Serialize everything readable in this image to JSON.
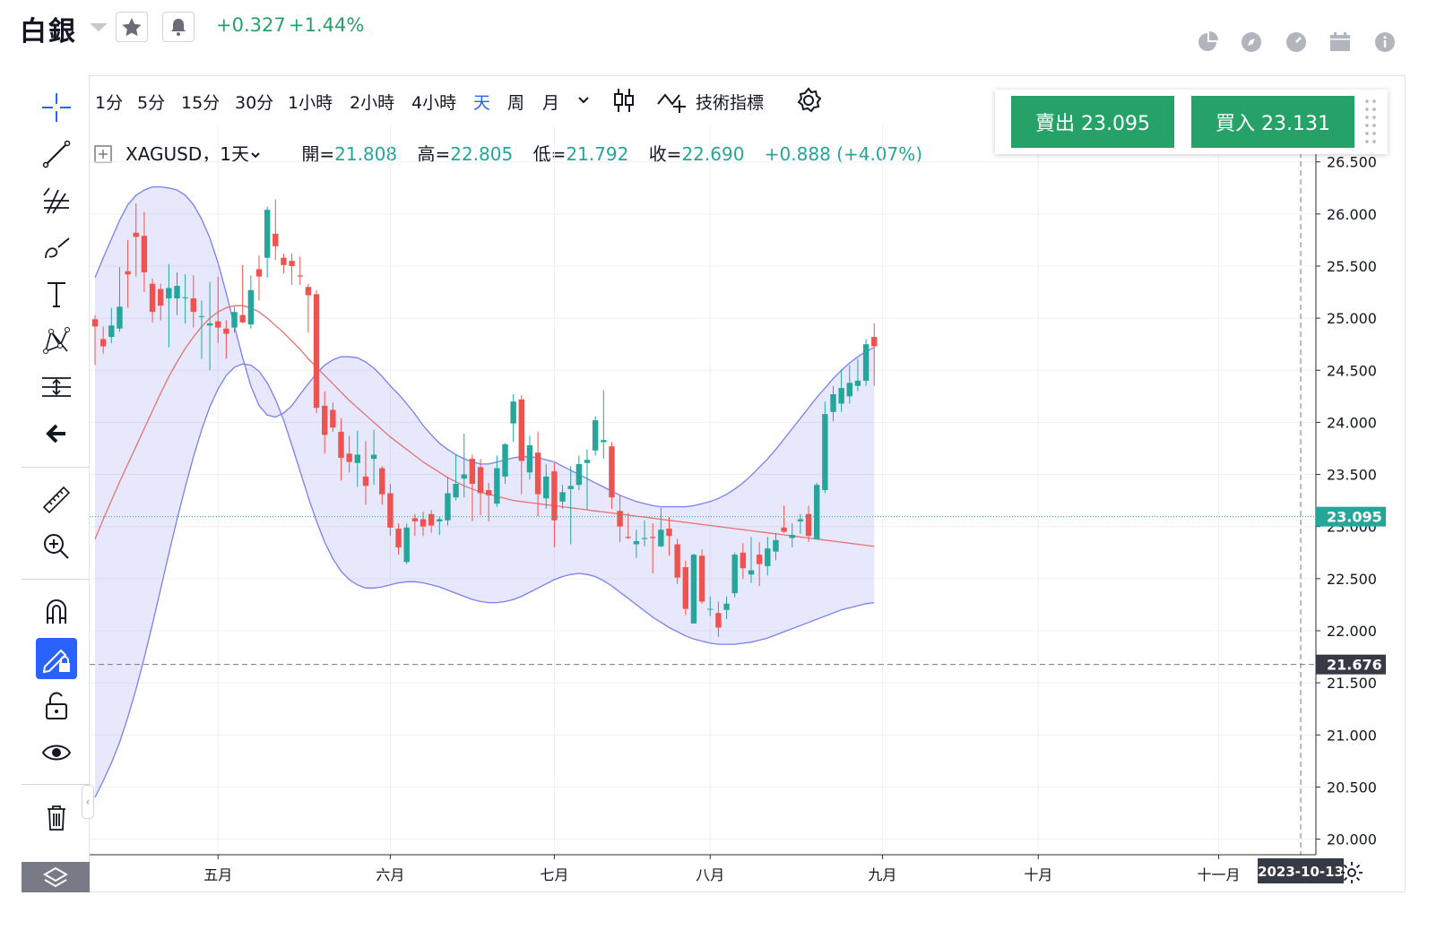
{
  "header": {
    "symbol_title": "白銀",
    "change_abs": "+0.327",
    "change_pct": "+1.44%"
  },
  "timeframes": [
    "1分",
    "5分",
    "15分",
    "30分",
    "1小時",
    "2小時",
    "4小時",
    "天",
    "周",
    "月"
  ],
  "active_timeframe": "天",
  "toolbar": {
    "indicators_label": "技術指標"
  },
  "legend": {
    "symbol": "XAGUSD，1天",
    "open_label": "開=",
    "open": "21.808",
    "high_label": "高=",
    "high": "22.805",
    "low_label": "低=",
    "low": "21.792",
    "close_label": "收=",
    "close": "22.690",
    "change": "+0.888 (+4.07%)"
  },
  "trade": {
    "sell_label": "賣出 23.095",
    "buy_label": "買入 23.131"
  },
  "colors": {
    "up": "#26a69a",
    "down": "#ef5350",
    "band": "#7b7ff0",
    "ma": "#e57373",
    "accent": "#2962ff"
  },
  "icons": [
    "crosshair-icon",
    "trendline-icon",
    "pitchfork-icon",
    "brush-icon",
    "text-icon",
    "pattern-icon",
    "measure-icon",
    "back-arrow-icon",
    "ruler-icon",
    "zoom-in-icon",
    "magnet-icon",
    "lock-pencil-icon",
    "unlock-icon",
    "eye-icon",
    "trash-icon",
    "layers-icon",
    "settings-icon",
    "pie-icon",
    "compass-icon",
    "gauge-icon",
    "calendar-icon",
    "info-icon"
  ],
  "chart_data": {
    "type": "candlestick",
    "symbol": "XAGUSD",
    "y_axis_ticks": [
      "26.500",
      "26.000",
      "25.500",
      "25.000",
      "24.500",
      "24.000",
      "23.500",
      "23.000",
      "22.500",
      "22.000",
      "21.500",
      "21.000",
      "20.500",
      "20.000"
    ],
    "ylim": [
      19.85,
      26.85
    ],
    "x_axis_labels": [
      "五月",
      "六月",
      "七月",
      "八月",
      "九月",
      "十月",
      "十一月"
    ],
    "last_price_label": "23.095",
    "last_price": 23.095,
    "crosshair_price_label": "21.676",
    "crosshair_price": 21.676,
    "crosshair_date_label": "2023-10-13",
    "crosshair_index": 147,
    "month_start_index": {
      "五月": 15,
      "六月": 36,
      "七月": 56,
      "八月": 75,
      "九月": 96,
      "十月": 115,
      "十一月": 137
    },
    "candles": [
      [
        24.99,
        25.03,
        24.55,
        24.92
      ],
      [
        24.8,
        24.92,
        24.66,
        24.73
      ],
      [
        24.82,
        25.1,
        24.76,
        24.93
      ],
      [
        24.9,
        25.49,
        24.87,
        25.11
      ],
      [
        25.45,
        25.75,
        25.1,
        25.42
      ],
      [
        25.82,
        26.1,
        25.4,
        25.78
      ],
      [
        25.79,
        26.02,
        25.25,
        25.44
      ],
      [
        25.33,
        25.38,
        24.96,
        25.06
      ],
      [
        25.28,
        25.33,
        24.98,
        25.12
      ],
      [
        25.19,
        25.52,
        24.72,
        25.29
      ],
      [
        25.19,
        25.44,
        25.03,
        25.31
      ],
      [
        25.2,
        25.42,
        24.95,
        25.2
      ],
      [
        25.19,
        25.41,
        24.91,
        25.06
      ],
      [
        25.02,
        25.17,
        24.61,
        25.02
      ],
      [
        24.93,
        25.35,
        24.5,
        24.95
      ],
      [
        24.97,
        25.4,
        24.76,
        24.91
      ],
      [
        24.9,
        24.98,
        24.61,
        24.85
      ],
      [
        24.91,
        25.11,
        24.86,
        25.06
      ],
      [
        25.03,
        25.51,
        24.95,
        24.96
      ],
      [
        24.94,
        25.41,
        24.9,
        25.27
      ],
      [
        25.47,
        25.6,
        25.17,
        25.4
      ],
      [
        25.58,
        26.07,
        25.39,
        26.04
      ],
      [
        25.81,
        26.14,
        25.56,
        25.69
      ],
      [
        25.58,
        25.62,
        25.43,
        25.51
      ],
      [
        25.55,
        25.62,
        25.32,
        25.5
      ],
      [
        25.41,
        25.59,
        25.32,
        25.4
      ],
      [
        25.3,
        25.33,
        24.86,
        25.22
      ],
      [
        25.23,
        25.27,
        24.09,
        24.14
      ],
      [
        24.16,
        24.3,
        23.7,
        23.88
      ],
      [
        24.12,
        24.19,
        23.91,
        23.95
      ],
      [
        23.91,
        24.04,
        23.44,
        23.66
      ],
      [
        23.7,
        23.87,
        23.52,
        23.62
      ],
      [
        23.61,
        23.92,
        23.38,
        23.69
      ],
      [
        23.48,
        23.82,
        23.21,
        23.39
      ],
      [
        23.65,
        23.93,
        23.4,
        23.69
      ],
      [
        23.56,
        23.58,
        23.21,
        23.31
      ],
      [
        23.32,
        23.41,
        22.91,
        22.99
      ],
      [
        22.98,
        23.03,
        22.73,
        22.8
      ],
      [
        22.66,
        23.03,
        22.64,
        22.99
      ],
      [
        23.08,
        23.12,
        22.91,
        23.05
      ],
      [
        23.07,
        23.14,
        22.91,
        23.0
      ],
      [
        23.12,
        23.16,
        22.94,
        23.01
      ],
      [
        23.05,
        23.09,
        22.92,
        23.07
      ],
      [
        23.06,
        23.48,
        23.01,
        23.32
      ],
      [
        23.28,
        23.69,
        23.25,
        23.41
      ],
      [
        23.46,
        23.89,
        23.28,
        23.5
      ],
      [
        23.65,
        23.69,
        23.05,
        23.41
      ],
      [
        23.57,
        23.65,
        23.11,
        23.32
      ],
      [
        23.35,
        23.42,
        23.05,
        23.3
      ],
      [
        23.22,
        23.68,
        23.19,
        23.56
      ],
      [
        23.48,
        23.8,
        23.41,
        23.79
      ],
      [
        23.99,
        24.27,
        23.81,
        24.2
      ],
      [
        24.22,
        24.26,
        23.31,
        23.63
      ],
      [
        23.52,
        23.87,
        23.45,
        23.78
      ],
      [
        23.71,
        23.91,
        23.1,
        23.31
      ],
      [
        23.27,
        23.6,
        23.17,
        23.48
      ],
      [
        23.53,
        23.61,
        22.8,
        23.06
      ],
      [
        23.24,
        23.4,
        23.17,
        23.33
      ],
      [
        23.36,
        23.58,
        22.83,
        23.39
      ],
      [
        23.4,
        23.68,
        23.35,
        23.6
      ],
      [
        23.61,
        23.74,
        23.16,
        23.64
      ],
      [
        23.73,
        24.06,
        23.68,
        24.02
      ],
      [
        23.81,
        24.31,
        23.65,
        23.83
      ],
      [
        23.77,
        23.81,
        23.17,
        23.28
      ],
      [
        23.15,
        23.3,
        22.85,
        23.0
      ],
      [
        22.9,
        23.13,
        22.88,
        22.89
      ],
      [
        22.83,
        22.97,
        22.7,
        22.86
      ],
      [
        22.88,
        23.06,
        22.81,
        22.89
      ],
      [
        22.9,
        23.03,
        22.55,
        22.89
      ],
      [
        22.81,
        23.18,
        22.8,
        22.97
      ],
      [
        22.98,
        23.09,
        22.72,
        22.91
      ],
      [
        22.83,
        22.88,
        22.45,
        22.51
      ],
      [
        22.61,
        22.67,
        22.15,
        22.21
      ],
      [
        22.07,
        22.74,
        22.07,
        22.73
      ],
      [
        22.72,
        22.78,
        22.26,
        22.28
      ],
      [
        22.21,
        22.33,
        22.14,
        22.21
      ],
      [
        22.17,
        22.28,
        21.94,
        22.03
      ],
      [
        22.2,
        22.33,
        22.11,
        22.26
      ],
      [
        22.36,
        22.75,
        22.32,
        22.73
      ],
      [
        22.75,
        22.84,
        22.5,
        22.6
      ],
      [
        22.54,
        22.9,
        22.46,
        22.58
      ],
      [
        22.73,
        22.85,
        22.43,
        22.64
      ],
      [
        22.62,
        22.9,
        22.53,
        22.79
      ],
      [
        22.76,
        22.94,
        22.68,
        22.87
      ],
      [
        22.99,
        23.2,
        22.94,
        22.95
      ],
      [
        22.89,
        23.03,
        22.8,
        22.92
      ],
      [
        23.05,
        23.12,
        22.93,
        23.07
      ],
      [
        23.12,
        23.2,
        22.85,
        22.91
      ],
      [
        22.88,
        23.42,
        22.88,
        23.4
      ],
      [
        23.35,
        24.2,
        23.32,
        24.08
      ],
      [
        24.1,
        24.35,
        24.01,
        24.27
      ],
      [
        24.18,
        24.51,
        24.1,
        24.33
      ],
      [
        24.25,
        24.55,
        24.18,
        24.38
      ],
      [
        24.35,
        24.61,
        24.3,
        24.4
      ],
      [
        24.4,
        24.8,
        24.35,
        24.75
      ],
      [
        24.82,
        24.95,
        24.35,
        24.73
      ]
    ],
    "bollinger_upper": [
      25.39,
      25.58,
      25.76,
      25.94,
      26.09,
      26.18,
      26.23,
      26.26,
      26.26,
      26.25,
      26.23,
      26.18,
      26.09,
      25.95,
      25.77,
      25.53,
      25.24,
      24.92,
      24.62,
      24.35,
      24.16,
      24.07,
      24.05,
      24.09,
      24.16,
      24.27,
      24.37,
      24.47,
      24.55,
      24.6,
      24.63,
      24.63,
      24.62,
      24.58,
      24.52,
      24.44,
      24.35,
      24.27,
      24.18,
      24.08,
      23.97,
      23.88,
      23.8,
      23.74,
      23.69,
      23.65,
      23.62,
      23.6,
      23.6,
      23.62,
      23.64,
      23.66,
      23.67,
      23.67,
      23.66,
      23.64,
      23.62,
      23.58,
      23.54,
      23.5,
      23.46,
      23.42,
      23.38,
      23.34,
      23.3,
      23.27,
      23.24,
      23.22,
      23.2,
      23.19,
      23.19,
      23.19,
      23.19,
      23.2,
      23.22,
      23.24,
      23.27,
      23.31,
      23.36,
      23.42,
      23.49,
      23.57,
      23.65,
      23.74,
      23.84,
      23.94,
      24.04,
      24.14,
      24.24,
      24.33,
      24.42,
      24.5,
      24.57,
      24.63,
      24.68,
      24.72
    ],
    "bollinger_lower": [
      20.4,
      20.56,
      20.73,
      20.93,
      21.17,
      21.44,
      21.74,
      22.06,
      22.4,
      22.74,
      23.07,
      23.38,
      23.67,
      23.93,
      24.15,
      24.32,
      24.45,
      24.53,
      24.56,
      24.55,
      24.49,
      24.38,
      24.22,
      24.02,
      23.78,
      23.53,
      23.28,
      23.05,
      22.85,
      22.69,
      22.57,
      22.49,
      22.44,
      22.41,
      22.41,
      22.42,
      22.44,
      22.46,
      22.47,
      22.47,
      22.46,
      22.44,
      22.42,
      22.39,
      22.36,
      22.33,
      22.3,
      22.28,
      22.27,
      22.27,
      22.28,
      22.3,
      22.33,
      22.37,
      22.41,
      22.45,
      22.49,
      22.52,
      22.54,
      22.55,
      22.54,
      22.52,
      22.48,
      22.43,
      22.37,
      22.31,
      22.25,
      22.19,
      22.13,
      22.08,
      22.03,
      21.99,
      21.95,
      21.92,
      21.9,
      21.88,
      21.87,
      21.87,
      21.87,
      21.88,
      21.89,
      21.91,
      21.93,
      21.96,
      21.99,
      22.02,
      22.05,
      22.08,
      22.11,
      22.14,
      22.17,
      22.2,
      22.22,
      22.24,
      22.26,
      22.27
    ],
    "ma_line": [
      22.88,
      23.07,
      23.25,
      23.43,
      23.6,
      23.77,
      23.94,
      24.11,
      24.28,
      24.44,
      24.58,
      24.71,
      24.82,
      24.92,
      25.0,
      25.06,
      25.1,
      25.12,
      25.12,
      25.1,
      25.06,
      25.0,
      24.93,
      24.86,
      24.78,
      24.7,
      24.61,
      24.53,
      24.45,
      24.37,
      24.29,
      24.21,
      24.14,
      24.07,
      24.0,
      23.93,
      23.86,
      23.8,
      23.74,
      23.68,
      23.62,
      23.57,
      23.52,
      23.47,
      23.43,
      23.39,
      23.36,
      23.33,
      23.31,
      23.29,
      23.27,
      23.25,
      23.24,
      23.23,
      23.22,
      23.21,
      23.2,
      23.19,
      23.18,
      23.17,
      23.16,
      23.15,
      23.14,
      23.13,
      23.12,
      23.11,
      23.1,
      23.09,
      23.08,
      23.07,
      23.06,
      23.05,
      23.04,
      23.03,
      23.02,
      23.01,
      23.0,
      22.99,
      22.98,
      22.97,
      22.96,
      22.95,
      22.94,
      22.93,
      22.92,
      22.91,
      22.9,
      22.89,
      22.88,
      22.87,
      22.86,
      22.85,
      22.84,
      22.83,
      22.82,
      22.81
    ]
  }
}
